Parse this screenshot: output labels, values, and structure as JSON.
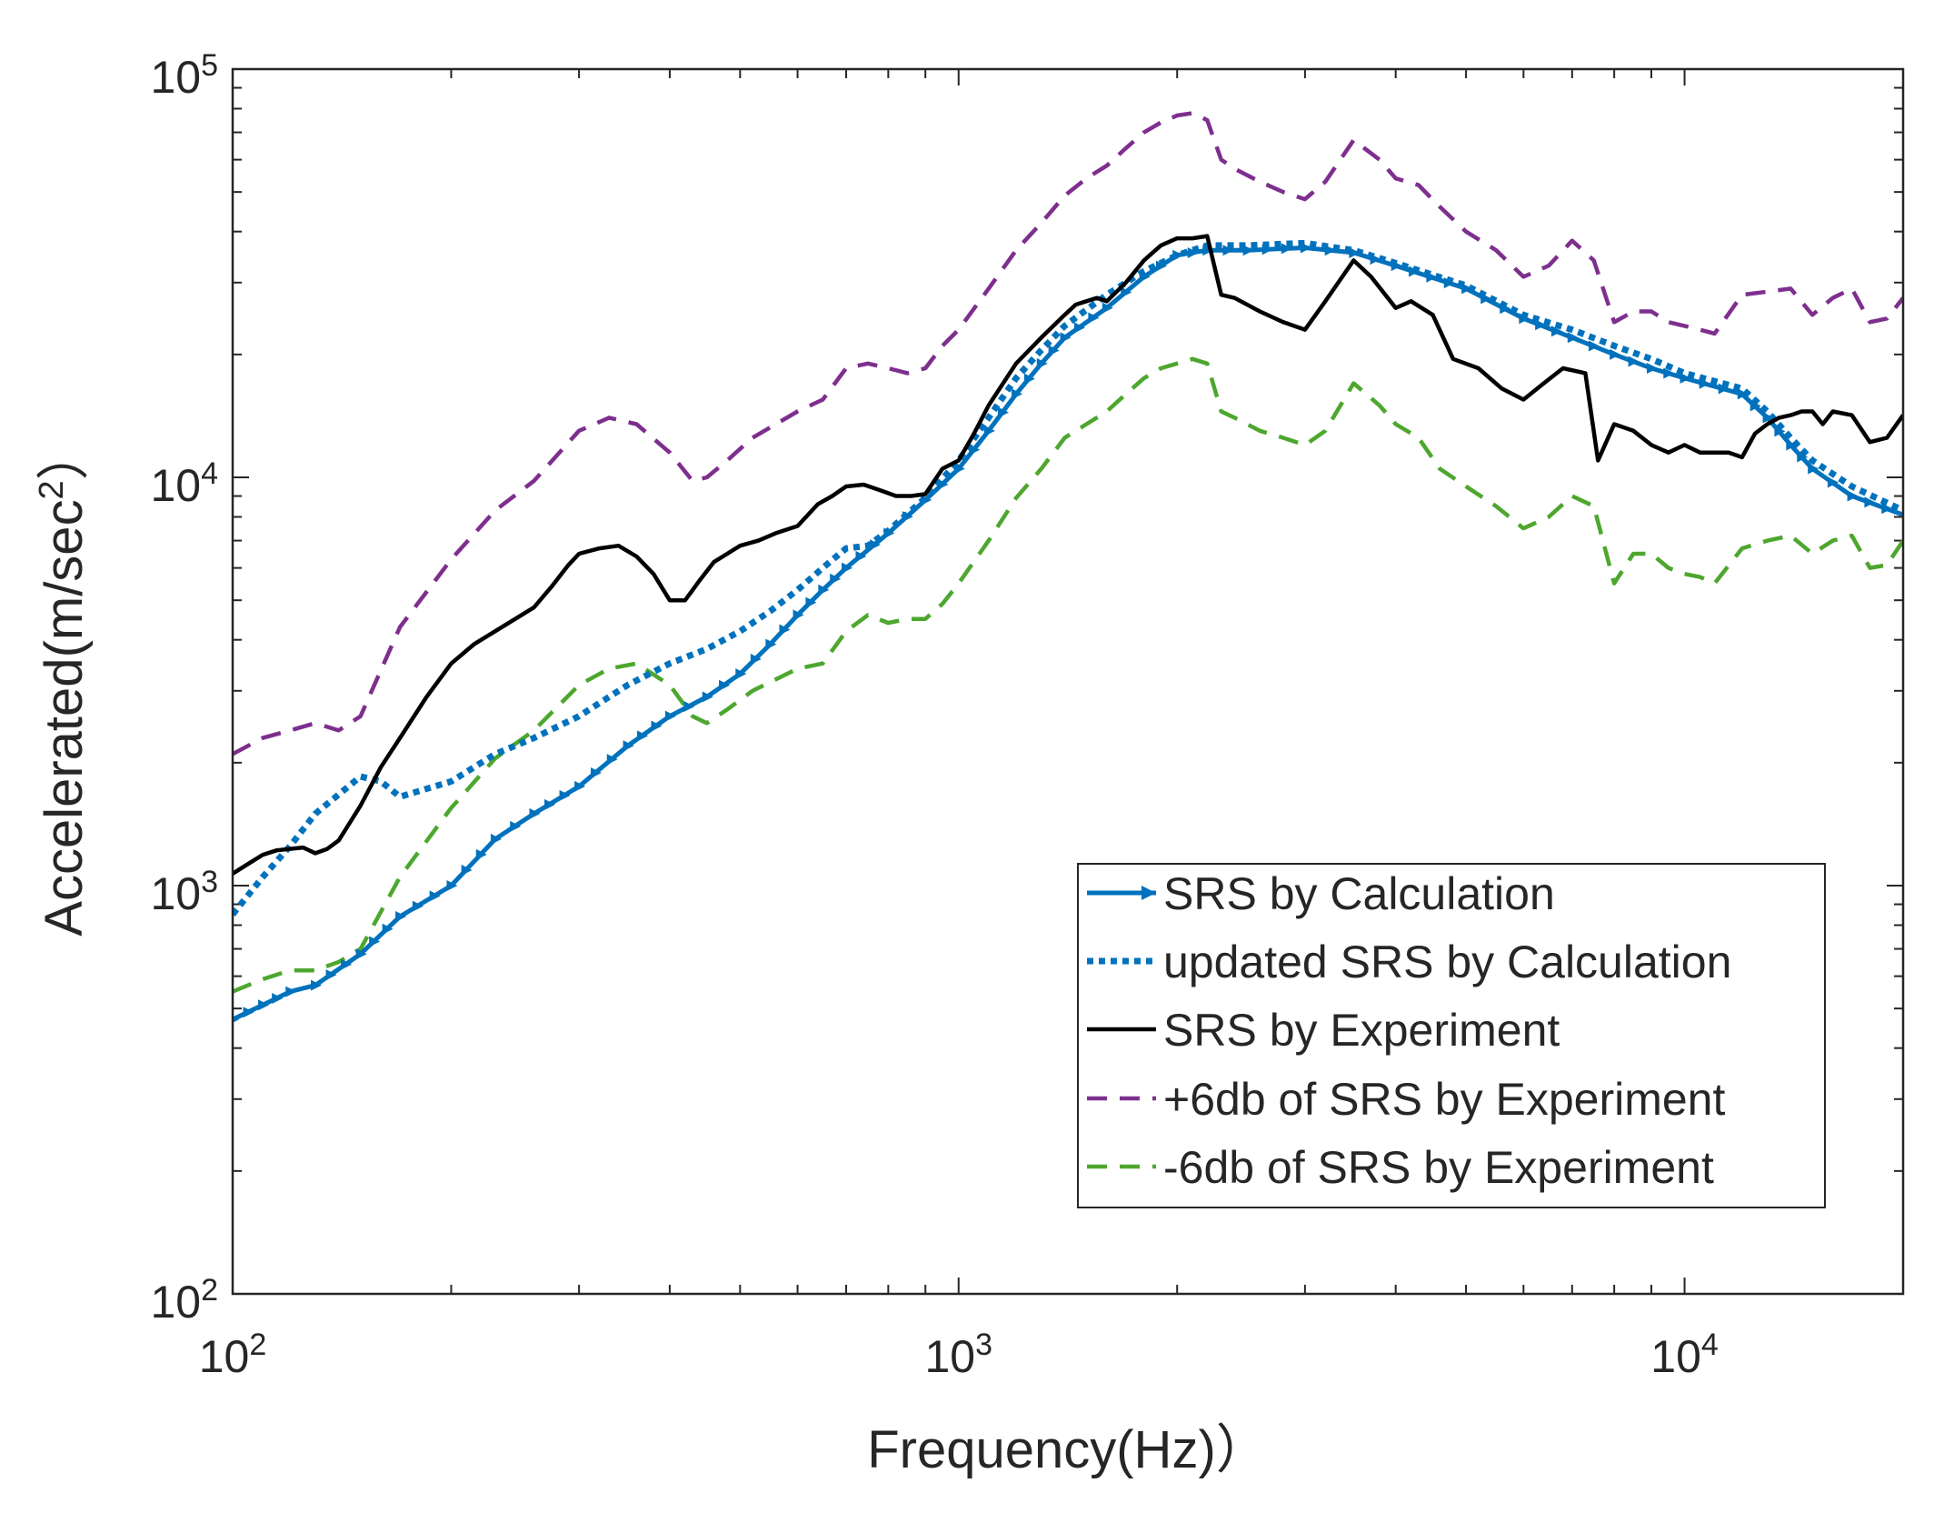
{
  "chart_data": {
    "type": "line",
    "xscale": "log",
    "yscale": "log",
    "xlim": [
      100,
      20000
    ],
    "ylim": [
      100,
      100000
    ],
    "xlabel": "Frequency(Hz)）",
    "ylabel": "Accelerated(m/sec",
    "ylabel_sup": "2",
    "ylabel_suffix": "）",
    "legend_position": "bottom-right",
    "x_ticks": [
      {
        "value": 100,
        "base": "10",
        "exp": "2"
      },
      {
        "value": 1000,
        "base": "10",
        "exp": "3"
      },
      {
        "value": 10000,
        "base": "10",
        "exp": "4"
      }
    ],
    "y_ticks": [
      {
        "value": 100,
        "base": "10",
        "exp": "2"
      },
      {
        "value": 1000,
        "base": "10",
        "exp": "3"
      },
      {
        "value": 10000,
        "base": "10",
        "exp": "4"
      },
      {
        "value": 100000,
        "base": "10",
        "exp": "5"
      }
    ],
    "series": [
      {
        "name": "SRS by Calculation",
        "color": "#0072BD",
        "style": "solid-triangle",
        "x": [
          100,
          110,
          120,
          130,
          150,
          170,
          200,
          230,
          260,
          300,
          350,
          400,
          450,
          500,
          550,
          600,
          650,
          700,
          800,
          900,
          1000,
          1100,
          1200,
          1300,
          1400,
          1600,
          1800,
          2000,
          2200,
          2500,
          3000,
          3500,
          4000,
          5000,
          6000,
          7000,
          8000,
          9000,
          10000,
          12000,
          13000,
          14000,
          15000,
          17000,
          20000
        ],
        "y": [
          470,
          510,
          550,
          570,
          680,
          840,
          1000,
          1300,
          1500,
          1750,
          2200,
          2600,
          2900,
          3300,
          3900,
          4600,
          5300,
          6000,
          7300,
          8800,
          10500,
          13000,
          16000,
          19000,
          22000,
          26000,
          31000,
          35000,
          36000,
          36000,
          36500,
          35500,
          33000,
          29000,
          24500,
          22000,
          20000,
          18500,
          17500,
          16000,
          14000,
          12000,
          10500,
          9000,
          8100
        ]
      },
      {
        "name": "updated SRS by Calculation",
        "color": "#0072BD",
        "style": "dotted",
        "x": [
          100,
          110,
          120,
          130,
          150,
          160,
          170,
          200,
          230,
          260,
          300,
          350,
          400,
          450,
          500,
          550,
          600,
          650,
          700,
          750,
          800,
          900,
          1000,
          1100,
          1200,
          1300,
          1400,
          1600,
          1800,
          2000,
          2200,
          2500,
          3000,
          3500,
          4000,
          5000,
          6000,
          7000,
          8000,
          9000,
          10000,
          12000,
          13000,
          14000,
          15000,
          17000,
          20000
        ],
        "y": [
          850,
          1050,
          1250,
          1500,
          1850,
          1800,
          1650,
          1800,
          2100,
          2300,
          2600,
          3100,
          3500,
          3800,
          4200,
          4700,
          5300,
          6000,
          6700,
          6800,
          7400,
          8900,
          11000,
          14000,
          17500,
          20500,
          23500,
          28000,
          32000,
          35000,
          37000,
          37000,
          37500,
          36000,
          33500,
          29500,
          25000,
          23000,
          21000,
          19500,
          18000,
          16500,
          14500,
          12500,
          11000,
          9500,
          8300
        ]
      },
      {
        "name": "SRS by Experiment",
        "color": "#000000",
        "style": "solid",
        "x": [
          100,
          105,
          110,
          115,
          120,
          125,
          130,
          135,
          140,
          150,
          160,
          170,
          185,
          200,
          215,
          230,
          245,
          260,
          275,
          290,
          300,
          320,
          340,
          360,
          380,
          400,
          420,
          440,
          460,
          480,
          500,
          530,
          560,
          600,
          640,
          670,
          700,
          740,
          780,
          820,
          860,
          900,
          950,
          1000,
          1050,
          1100,
          1200,
          1300,
          1400,
          1450,
          1500,
          1550,
          1600,
          1700,
          1800,
          1900,
          2000,
          2100,
          2200,
          2300,
          2400,
          2600,
          2800,
          3000,
          3200,
          3500,
          3700,
          4000,
          4200,
          4500,
          4800,
          5200,
          5600,
          6000,
          6400,
          6800,
          7300,
          7600,
          8000,
          8500,
          9000,
          9500,
          10000,
          10500,
          11000,
          11500,
          12000,
          12500,
          13000,
          13500,
          14000,
          14500,
          15000,
          15500,
          16000,
          17000,
          18000,
          19000,
          20000
        ],
        "y": [
          1070,
          1130,
          1190,
          1220,
          1230,
          1240,
          1200,
          1230,
          1290,
          1570,
          1950,
          2300,
          2900,
          3500,
          3900,
          4200,
          4500,
          4800,
          5400,
          6100,
          6500,
          6700,
          6800,
          6400,
          5800,
          5000,
          5000,
          5600,
          6200,
          6500,
          6800,
          7000,
          7300,
          7600,
          8600,
          9000,
          9500,
          9600,
          9300,
          9000,
          9000,
          9100,
          10500,
          11000,
          12800,
          15000,
          19000,
          22000,
          25000,
          26500,
          27000,
          27500,
          27000,
          30000,
          34000,
          37000,
          38500,
          38500,
          39000,
          28000,
          27500,
          25500,
          24000,
          23000,
          27000,
          34000,
          31000,
          26000,
          27000,
          25000,
          19500,
          18500,
          16500,
          15500,
          17000,
          18500,
          18000,
          11000,
          13500,
          13000,
          12000,
          11500,
          12000,
          11500,
          11500,
          11500,
          11200,
          12800,
          13500,
          14000,
          14200,
          14500,
          14500,
          13500,
          14500,
          14200,
          12200,
          12500,
          14200
        ]
      },
      {
        "name": "+6db of SRS by Experiment",
        "color": "#7E2F8E",
        "style": "dashed",
        "x": [
          100,
          110,
          120,
          130,
          140,
          150,
          170,
          200,
          230,
          260,
          300,
          330,
          360,
          400,
          430,
          450,
          480,
          520,
          560,
          600,
          650,
          700,
          750,
          800,
          850,
          900,
          950,
          1000,
          1100,
          1200,
          1300,
          1400,
          1500,
          1600,
          1700,
          1800,
          1900,
          2000,
          2100,
          2200,
          2300,
          2400,
          2600,
          2800,
          3000,
          3200,
          3500,
          3800,
          4000,
          4300,
          4600,
          5000,
          5500,
          6000,
          6500,
          7000,
          7500,
          8000,
          8500,
          9000,
          9500,
          10000,
          10500,
          11000,
          12000,
          13000,
          14000,
          15000,
          16000,
          17000,
          18000,
          19000,
          20000
        ],
        "y": [
          2100,
          2300,
          2400,
          2500,
          2400,
          2600,
          4300,
          6300,
          8300,
          9800,
          13000,
          14000,
          13500,
          11500,
          9800,
          10000,
          11000,
          12500,
          13500,
          14500,
          15500,
          18500,
          19000,
          18500,
          18000,
          18500,
          21000,
          23000,
          29000,
          36000,
          42000,
          49000,
          54000,
          58000,
          64000,
          70000,
          74000,
          77000,
          78000,
          75000,
          60000,
          57000,
          53000,
          50000,
          48000,
          53000,
          67000,
          60000,
          54000,
          52000,
          46000,
          40000,
          36000,
          31000,
          33000,
          38000,
          34000,
          24000,
          25500,
          25500,
          24000,
          23500,
          23000,
          22500,
          28000,
          28500,
          29000,
          25000,
          27500,
          29000,
          24000,
          24500,
          27500
        ]
      },
      {
        "name": "-6db of SRS by Experiment",
        "color": "#4DA72E",
        "style": "dashed",
        "x": [
          100,
          110,
          120,
          130,
          140,
          150,
          170,
          200,
          230,
          260,
          300,
          330,
          360,
          400,
          430,
          450,
          480,
          520,
          560,
          600,
          650,
          700,
          750,
          800,
          850,
          900,
          950,
          1000,
          1100,
          1200,
          1300,
          1400,
          1500,
          1600,
          1700,
          1800,
          1900,
          2000,
          2100,
          2200,
          2300,
          2400,
          2600,
          2800,
          3000,
          3200,
          3500,
          3800,
          4000,
          4300,
          4600,
          5000,
          5500,
          6000,
          6500,
          7000,
          7500,
          8000,
          8500,
          9000,
          9500,
          10000,
          10500,
          11000,
          12000,
          13000,
          14000,
          15000,
          16000,
          17000,
          18000,
          19000,
          20000
        ],
        "y": [
          550,
          590,
          620,
          620,
          650,
          700,
          1050,
          1550,
          2050,
          2400,
          3100,
          3400,
          3500,
          3100,
          2600,
          2500,
          2700,
          3000,
          3200,
          3400,
          3500,
          4200,
          4600,
          4400,
          4500,
          4500,
          4900,
          5500,
          7000,
          8900,
          10500,
          12500,
          13500,
          14500,
          16000,
          17500,
          18500,
          19000,
          19500,
          19000,
          14500,
          14000,
          13000,
          12500,
          12000,
          13000,
          17000,
          15000,
          13500,
          12500,
          10500,
          9500,
          8500,
          7500,
          8000,
          9000,
          8500,
          5500,
          6500,
          6500,
          6000,
          5800,
          5700,
          5500,
          6700,
          7000,
          7200,
          6500,
          7000,
          7200,
          6000,
          6100,
          7000
        ]
      }
    ]
  }
}
